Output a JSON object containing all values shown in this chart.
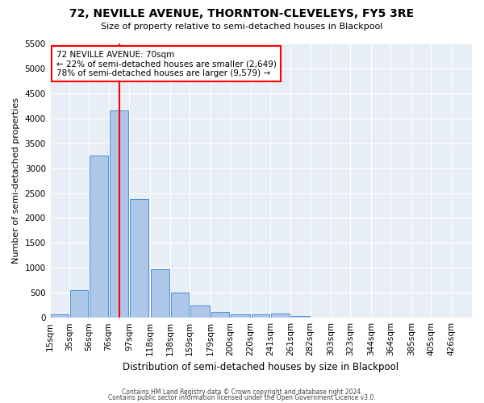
{
  "title": "72, NEVILLE AVENUE, THORNTON-CLEVELEYS, FY5 3RE",
  "subtitle": "Size of property relative to semi-detached houses in Blackpool",
  "xlabel": "Distribution of semi-detached houses by size in Blackpool",
  "ylabel": "Number of semi-detached properties",
  "bin_labels": [
    "15sqm",
    "35sqm",
    "56sqm",
    "76sqm",
    "97sqm",
    "118sqm",
    "138sqm",
    "159sqm",
    "179sqm",
    "200sqm",
    "220sqm",
    "241sqm",
    "261sqm",
    "282sqm",
    "303sqm",
    "323sqm",
    "344sqm",
    "364sqm",
    "385sqm",
    "405sqm",
    "426sqm"
  ],
  "bar_values": [
    60,
    550,
    3250,
    4150,
    2380,
    980,
    500,
    240,
    115,
    60,
    75,
    85,
    40,
    0,
    0,
    0,
    0,
    0,
    0,
    0,
    0
  ],
  "bar_color": "#aec6e8",
  "bar_edge_color": "#4a90d9",
  "vline_x": 76,
  "vline_color": "red",
  "property_size": 70,
  "pct_smaller": 22,
  "count_smaller": "2,649",
  "pct_larger": 78,
  "count_larger": "9,579",
  "annotation_title": "72 NEVILLE AVENUE: 70sqm",
  "ylim": [
    0,
    5500
  ],
  "yticks": [
    0,
    500,
    1000,
    1500,
    2000,
    2500,
    3000,
    3500,
    4000,
    4500,
    5000,
    5500
  ],
  "footer_line1": "Contains HM Land Registry data © Crown copyright and database right 2024.",
  "footer_line2": "Contains public sector information licensed under the Open Government Licence v3.0.",
  "background_color": "#e8eef5",
  "tick_positions": [
    5,
    25,
    45,
    65,
    86,
    107,
    128,
    148,
    169,
    189,
    210,
    230,
    251,
    271,
    292,
    312,
    333,
    353,
    374,
    394,
    415
  ],
  "xlim": [
    5,
    436
  ]
}
